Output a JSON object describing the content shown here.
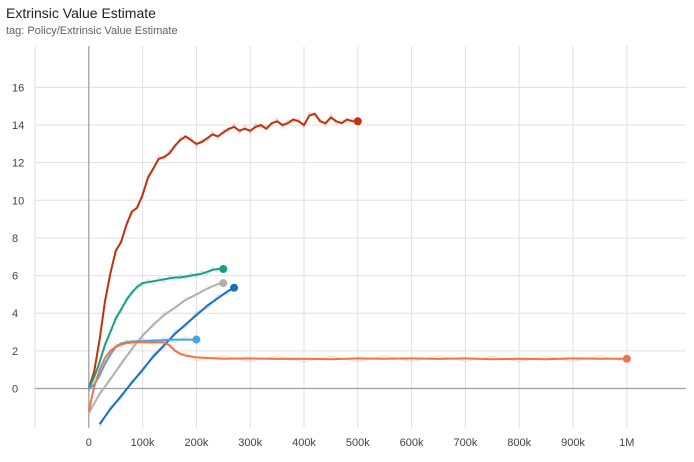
{
  "header": {
    "title": "Extrinsic Value Estimate",
    "subtitle": "tag: Policy/Extrinsic Value Estimate"
  },
  "chart_data": {
    "type": "line",
    "title": "Extrinsic Value Estimate",
    "xlabel": "",
    "ylabel": "",
    "xlim": [
      -100000,
      1110000
    ],
    "ylim": [
      -2.1,
      18.2
    ],
    "grid": true,
    "x_ticks": [
      0,
      100000,
      200000,
      300000,
      400000,
      500000,
      600000,
      700000,
      800000,
      900000,
      1000000
    ],
    "x_tick_labels": [
      "0",
      "100k",
      "200k",
      "300k",
      "400k",
      "500k",
      "600k",
      "700k",
      "800k",
      "900k",
      "1M"
    ],
    "y_ticks": [
      0,
      2,
      4,
      6,
      8,
      10,
      12,
      14,
      16
    ],
    "y_tick_labels": [
      "0",
      "2",
      "4",
      "6",
      "8",
      "10",
      "12",
      "14",
      "16"
    ],
    "series": [
      {
        "color": "#c0320f",
        "x": [
          0,
          10000,
          20000,
          30000,
          40000,
          50000,
          60000,
          70000,
          80000,
          90000,
          100000,
          110000,
          120000,
          130000,
          140000,
          150000,
          160000,
          170000,
          180000,
          190000,
          200000,
          210000,
          220000,
          230000,
          240000,
          250000,
          260000,
          270000,
          280000,
          290000,
          300000,
          310000,
          320000,
          330000,
          340000,
          350000,
          360000,
          370000,
          380000,
          390000,
          400000,
          410000,
          420000,
          430000,
          440000,
          450000,
          460000,
          470000,
          480000,
          490000,
          500000
        ],
        "y": [
          0,
          0.9,
          2.6,
          4.6,
          6.1,
          7.3,
          7.8,
          8.7,
          9.4,
          9.6,
          10.3,
          11.2,
          11.7,
          12.2,
          12.3,
          12.5,
          12.9,
          13.2,
          13.4,
          13.2,
          13.0,
          13.1,
          13.3,
          13.5,
          13.4,
          13.6,
          13.8,
          13.9,
          13.7,
          13.8,
          13.7,
          13.9,
          14.0,
          13.8,
          14.1,
          14.2,
          14.0,
          14.1,
          14.3,
          14.2,
          14.0,
          14.5,
          14.6,
          14.2,
          14.1,
          14.4,
          14.2,
          14.1,
          14.3,
          14.2,
          14.2
        ]
      },
      {
        "color": "#1a9e89",
        "x": [
          0,
          10000,
          20000,
          30000,
          40000,
          50000,
          60000,
          70000,
          80000,
          90000,
          100000,
          110000,
          120000,
          130000,
          140000,
          150000,
          160000,
          170000,
          180000,
          190000,
          200000,
          210000,
          220000,
          230000,
          240000,
          250000
        ],
        "y": [
          0,
          0.6,
          1.4,
          2.3,
          3.0,
          3.7,
          4.2,
          4.7,
          5.1,
          5.4,
          5.6,
          5.65,
          5.7,
          5.75,
          5.8,
          5.85,
          5.9,
          5.9,
          5.95,
          6.0,
          6.05,
          6.1,
          6.2,
          6.3,
          6.35,
          6.35
        ]
      },
      {
        "color": "#b0b0b0",
        "x": [
          0,
          20000,
          40000,
          60000,
          80000,
          100000,
          120000,
          140000,
          160000,
          180000,
          200000,
          220000,
          240000,
          250000
        ],
        "y": [
          -1.3,
          -0.3,
          0.5,
          1.3,
          2.1,
          2.8,
          3.4,
          3.9,
          4.3,
          4.7,
          5.0,
          5.3,
          5.55,
          5.6
        ]
      },
      {
        "color": "#1470c2",
        "x": [
          20000,
          40000,
          60000,
          80000,
          100000,
          120000,
          140000,
          160000,
          180000,
          200000,
          220000,
          240000,
          260000,
          270000
        ],
        "y": [
          -1.9,
          -1.1,
          -0.4,
          0.3,
          1.0,
          1.7,
          2.3,
          2.9,
          3.4,
          3.9,
          4.4,
          4.8,
          5.2,
          5.35
        ]
      },
      {
        "color": "#4aa3df",
        "x": [
          0,
          10000,
          20000,
          30000,
          40000,
          50000,
          60000,
          70000,
          80000,
          100000,
          120000,
          140000,
          160000,
          180000,
          200000
        ],
        "y": [
          0,
          0.2,
          0.7,
          1.3,
          1.8,
          2.2,
          2.4,
          2.45,
          2.5,
          2.52,
          2.55,
          2.57,
          2.6,
          2.6,
          2.6
        ]
      },
      {
        "color": "#f0744a",
        "x": [
          0,
          10000,
          20000,
          30000,
          40000,
          50000,
          60000,
          70000,
          80000,
          100000,
          120000,
          140000,
          150000,
          160000,
          170000,
          180000,
          200000,
          250000,
          300000,
          350000,
          400000,
          450000,
          500000,
          550000,
          600000,
          650000,
          700000,
          750000,
          800000,
          850000,
          900000,
          950000,
          1000000
        ],
        "y": [
          -1.2,
          0.1,
          1.0,
          1.6,
          2.0,
          2.2,
          2.35,
          2.4,
          2.45,
          2.45,
          2.45,
          2.45,
          2.3,
          2.0,
          1.85,
          1.75,
          1.65,
          1.58,
          1.6,
          1.57,
          1.58,
          1.55,
          1.6,
          1.58,
          1.6,
          1.57,
          1.6,
          1.55,
          1.58,
          1.55,
          1.6,
          1.58,
          1.58
        ]
      }
    ]
  }
}
